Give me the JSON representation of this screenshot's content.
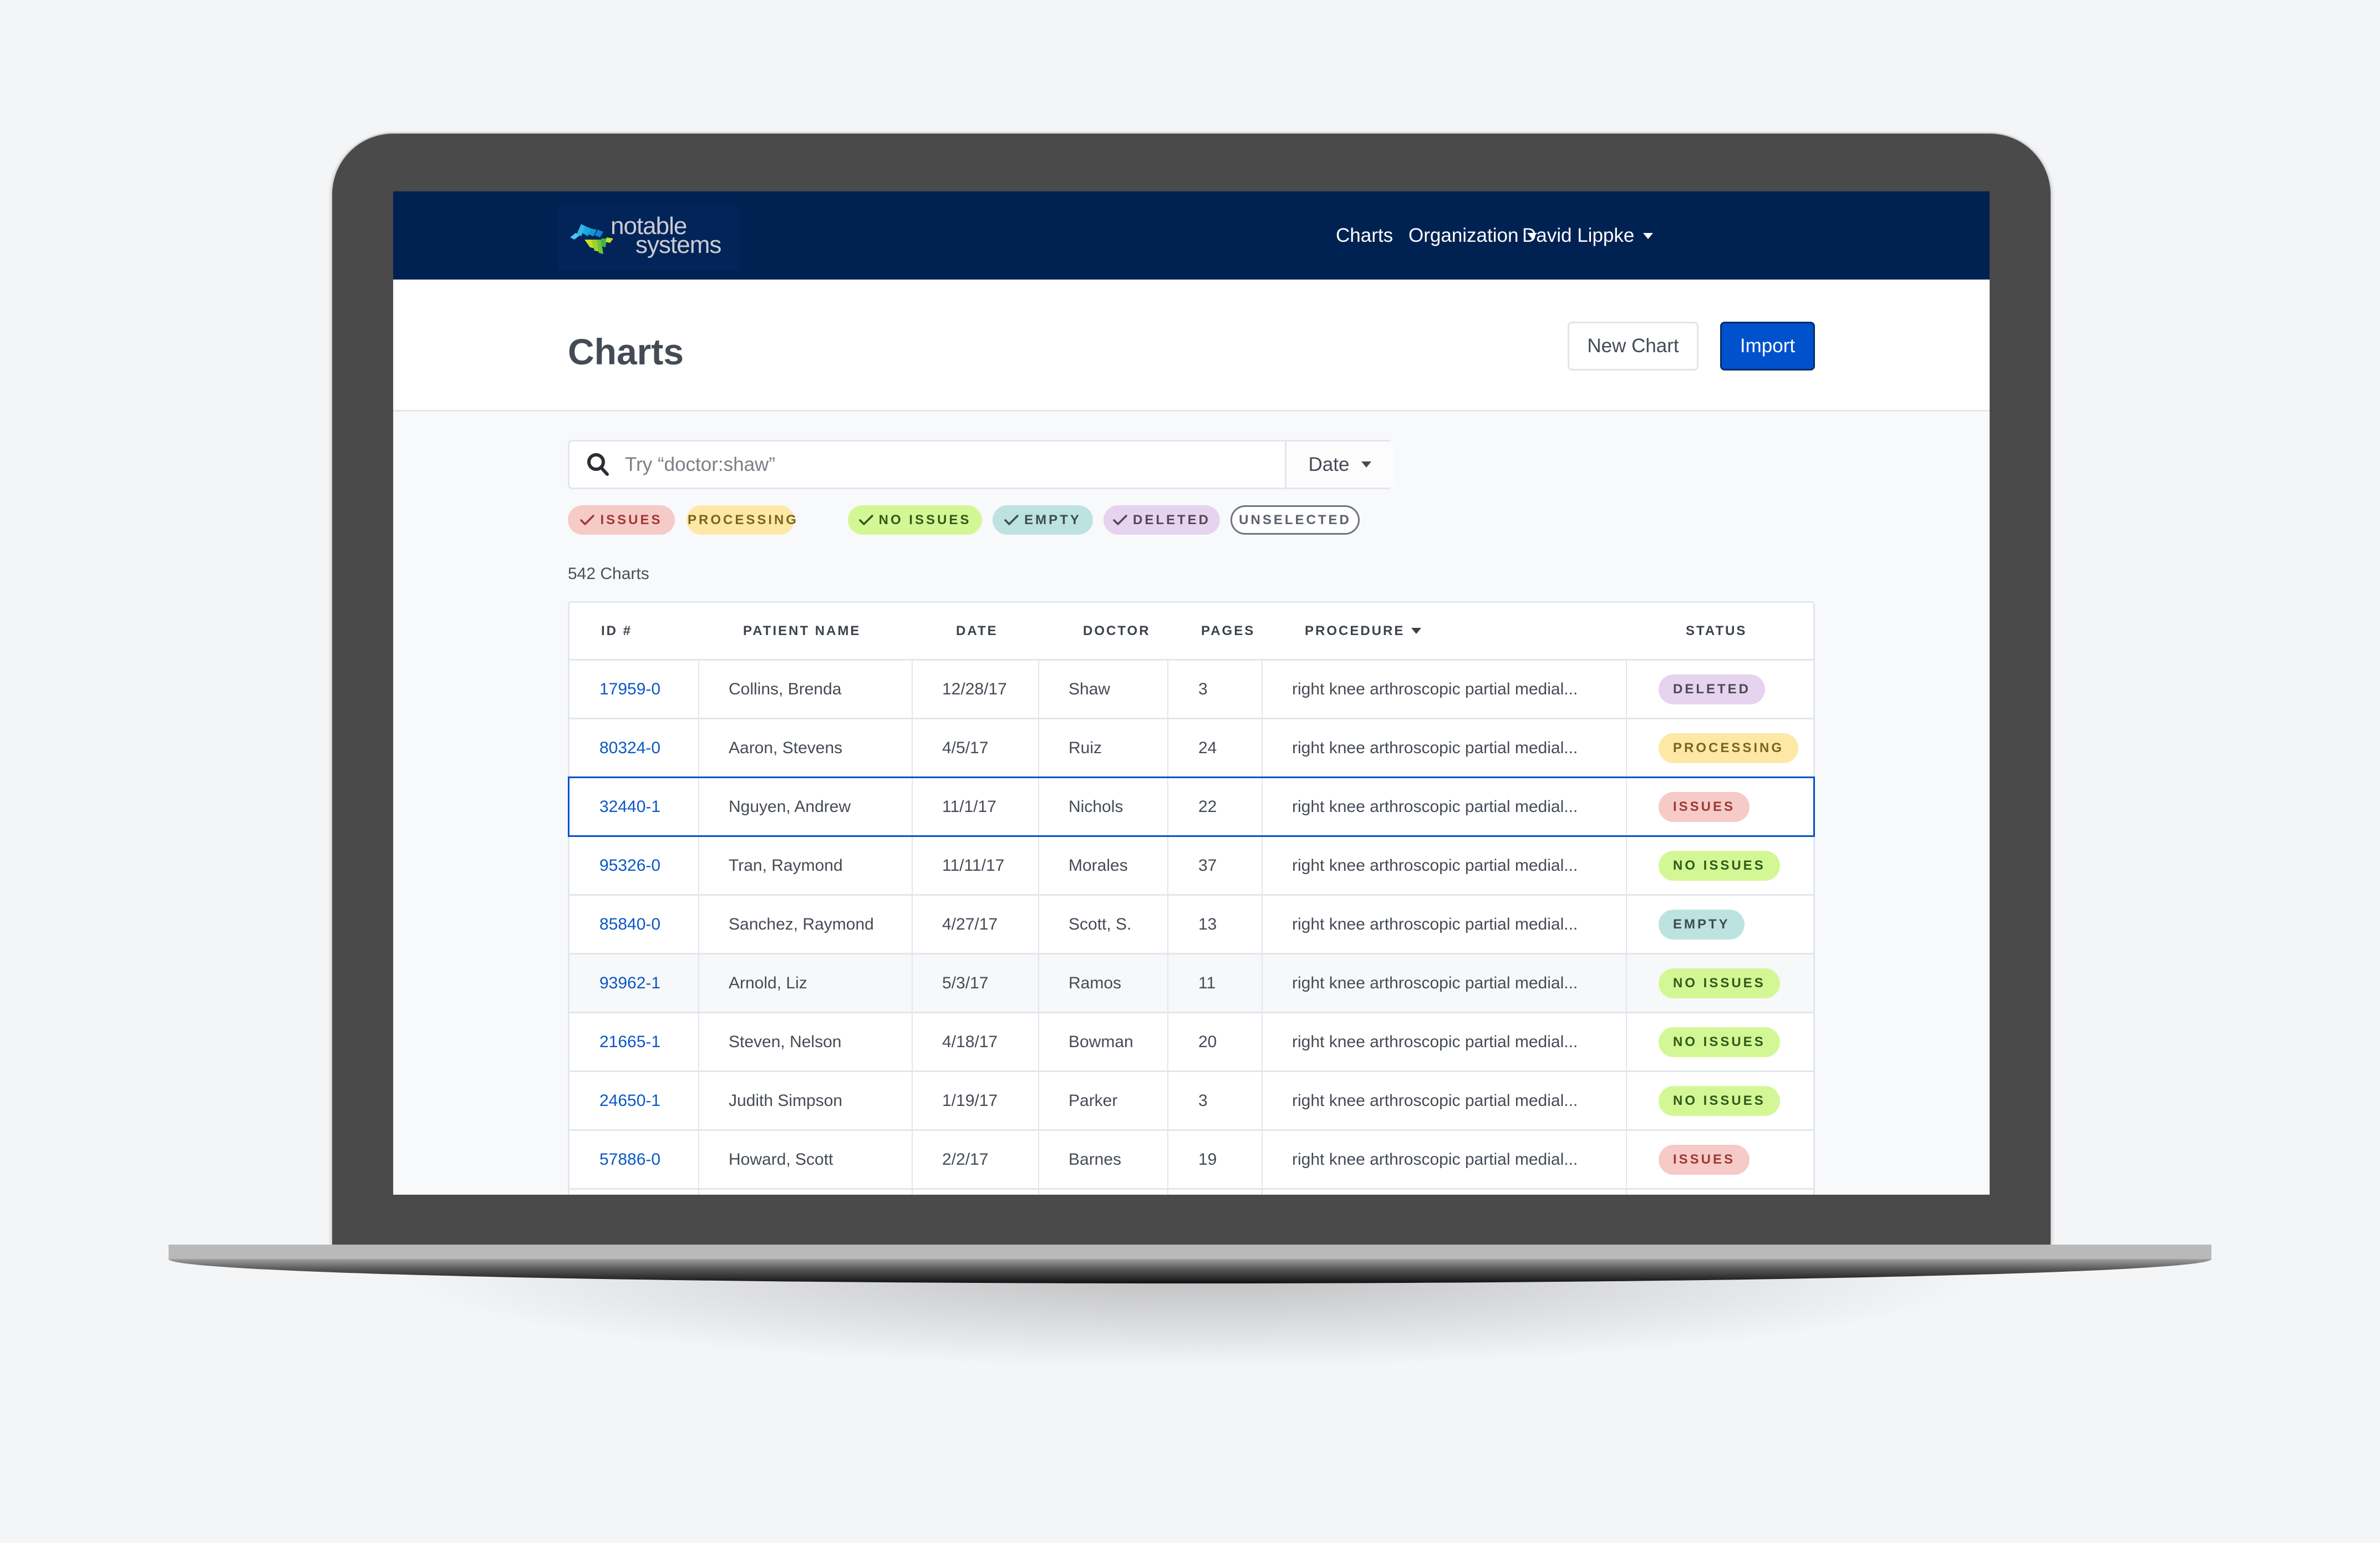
{
  "navbar": {
    "logo_line1": "notable",
    "logo_line2": "systems",
    "links": [
      {
        "label": "Charts",
        "has_caret": false
      },
      {
        "label": "Organization",
        "has_caret": true
      },
      {
        "label": "David Lippke",
        "has_caret": true
      }
    ]
  },
  "header": {
    "title": "Charts",
    "new_chart_label": "New Chart",
    "import_label": "Import"
  },
  "search": {
    "placeholder": "Try “doctor:shaw”",
    "value": "",
    "filter_label": "Date",
    "icon": "search-icon"
  },
  "filters": [
    {
      "label": "ISSUES",
      "checked": true,
      "bg": "#f6cac7",
      "fg": "#9b3a36"
    },
    {
      "label": "PROCESSING",
      "checked": true,
      "bg": "#fee8a6",
      "fg": "#7a6520"
    },
    {
      "label": "NO ISSUES",
      "checked": true,
      "bg": "#d4f795",
      "fg": "#2f5a1a"
    },
    {
      "label": "EMPTY",
      "checked": true,
      "bg": "#bde3e0",
      "fg": "#3f4b52"
    },
    {
      "label": "DELETED",
      "checked": true,
      "bg": "#e6d3ef",
      "fg": "#4e4856"
    },
    {
      "label": "UNSELECTED",
      "checked": false,
      "bg": "#ffffff",
      "fg": "#5b616b"
    }
  ],
  "count_label": "542 Charts",
  "table": {
    "columns": [
      "ID #",
      "PATIENT NAME",
      "DATE",
      "DOCTOR",
      "PAGES",
      "PROCEDURE",
      "STATUS"
    ],
    "sorted_column": "PROCEDURE",
    "rows": [
      {
        "id": "17959-0",
        "patient": "Collins, Brenda",
        "date": "12/28/17",
        "doctor": "Shaw",
        "pages": "3",
        "procedure": "right knee arthroscopic partial medial...",
        "status": "DELETED"
      },
      {
        "id": "80324-0",
        "patient": "Aaron, Stevens",
        "date": "4/5/17",
        "doctor": "Ruiz",
        "pages": "24",
        "procedure": "right knee arthroscopic partial medial...",
        "status": "PROCESSING"
      },
      {
        "id": "32440-1",
        "patient": "Nguyen, Andrew",
        "date": "11/1/17",
        "doctor": "Nichols",
        "pages": "22",
        "procedure": "right knee arthroscopic partial medial...",
        "status": "ISSUES",
        "selected": true
      },
      {
        "id": "95326-0",
        "patient": "Tran, Raymond",
        "date": "11/11/17",
        "doctor": "Morales",
        "pages": "37",
        "procedure": "right knee arthroscopic partial medial...",
        "status": "NO ISSUES"
      },
      {
        "id": "85840-0",
        "patient": "Sanchez, Raymond",
        "date": "4/27/17",
        "doctor": "Scott, S.",
        "pages": "13",
        "procedure": "right knee arthroscopic partial medial...",
        "status": "EMPTY"
      },
      {
        "id": "93962-1",
        "patient": "Arnold, Liz",
        "date": "5/3/17",
        "doctor": "Ramos",
        "pages": "11",
        "procedure": "right knee arthroscopic partial medial...",
        "status": "NO ISSUES",
        "hover": true
      },
      {
        "id": "21665-1",
        "patient": "Steven, Nelson",
        "date": "4/18/17",
        "doctor": "Bowman",
        "pages": "20",
        "procedure": "right knee arthroscopic partial medial...",
        "status": "NO ISSUES"
      },
      {
        "id": "24650-1",
        "patient": "Judith Simpson",
        "date": "1/19/17",
        "doctor": "Parker",
        "pages": "3",
        "procedure": "right knee arthroscopic partial medial...",
        "status": "NO ISSUES"
      },
      {
        "id": "57886-0",
        "patient": "Howard, Scott",
        "date": "2/2/17",
        "doctor": "Barnes",
        "pages": "19",
        "procedure": "right knee arthroscopic partial medial...",
        "status": "ISSUES"
      }
    ]
  },
  "status_colors": {
    "ISSUES": {
      "bg": "#f6cac7",
      "fg": "#9b3a36"
    },
    "PROCESSING": {
      "bg": "#fee8a6",
      "fg": "#7a6520"
    },
    "NO ISSUES": {
      "bg": "#d4f795",
      "fg": "#2f5a1a"
    },
    "EMPTY": {
      "bg": "#bde3e0",
      "fg": "#3f4b52"
    },
    "DELETED": {
      "bg": "#e6d3ef",
      "fg": "#4e4856"
    }
  },
  "colors": {
    "navbar": "#002252",
    "primary": "#0052cc",
    "link": "#0b57c5"
  }
}
